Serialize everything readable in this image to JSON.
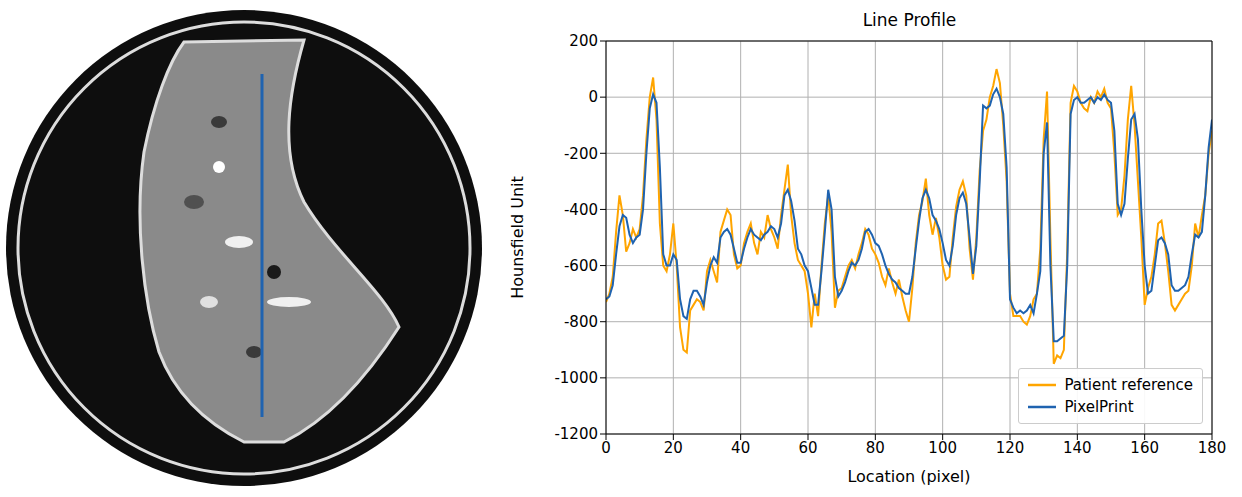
{
  "chart_data": {
    "type": "line",
    "title": "Line Profile",
    "x_label": "Location (pixel)",
    "y_label": "Hounsfield Unit",
    "xlim": [
      0,
      180
    ],
    "xticks": [
      0,
      20,
      40,
      60,
      80,
      100,
      120,
      140,
      160,
      180
    ],
    "ylim": [
      -1200,
      200
    ],
    "yticks": [
      -1200,
      -1000,
      -800,
      -600,
      -400,
      -200,
      0,
      200
    ],
    "grid": true,
    "legend": "lower right",
    "x": [
      0,
      1,
      2,
      3,
      4,
      5,
      6,
      7,
      8,
      9,
      10,
      11,
      12,
      13,
      14,
      15,
      16,
      17,
      18,
      19,
      20,
      21,
      22,
      23,
      24,
      25,
      26,
      27,
      28,
      29,
      30,
      31,
      32,
      33,
      34,
      35,
      36,
      37,
      38,
      39,
      40,
      41,
      42,
      43,
      44,
      45,
      46,
      47,
      48,
      49,
      50,
      51,
      52,
      53,
      54,
      55,
      56,
      57,
      58,
      59,
      60,
      61,
      62,
      63,
      64,
      65,
      66,
      67,
      68,
      69,
      70,
      71,
      72,
      73,
      74,
      75,
      76,
      77,
      78,
      79,
      80,
      81,
      82,
      83,
      84,
      85,
      86,
      87,
      88,
      89,
      90,
      91,
      92,
      93,
      94,
      95,
      96,
      97,
      98,
      99,
      100,
      101,
      102,
      103,
      104,
      105,
      106,
      107,
      108,
      109,
      110,
      111,
      112,
      113,
      114,
      115,
      116,
      117,
      118,
      119,
      120,
      121,
      122,
      123,
      124,
      125,
      126,
      127,
      128,
      129,
      130,
      131,
      132,
      133,
      134,
      135,
      136,
      137,
      138,
      139,
      140,
      141,
      142,
      143,
      144,
      145,
      146,
      147,
      148,
      149,
      150,
      151,
      152,
      153,
      154,
      155,
      156,
      157,
      158,
      159,
      160,
      161,
      162,
      163,
      164,
      165,
      166,
      167,
      168,
      169,
      170,
      171,
      172,
      173,
      174,
      175,
      176,
      177,
      178,
      179,
      180
    ],
    "series": [
      {
        "name": "Patient reference",
        "color": "#ffa500",
        "values": [
          -730,
          -700,
          -640,
          -480,
          -350,
          -420,
          -550,
          -520,
          -470,
          -500,
          -470,
          -350,
          -150,
          0,
          70,
          -80,
          -450,
          -600,
          -620,
          -560,
          -450,
          -600,
          -820,
          -900,
          -910,
          -760,
          -740,
          -720,
          -730,
          -760,
          -620,
          -580,
          -620,
          -660,
          -480,
          -440,
          -400,
          -420,
          -560,
          -610,
          -600,
          -520,
          -480,
          -450,
          -520,
          -560,
          -480,
          -500,
          -420,
          -470,
          -500,
          -540,
          -420,
          -330,
          -240,
          -420,
          -520,
          -580,
          -600,
          -620,
          -700,
          -820,
          -700,
          -780,
          -600,
          -450,
          -350,
          -480,
          -750,
          -690,
          -680,
          -640,
          -600,
          -580,
          -610,
          -560,
          -520,
          -470,
          -490,
          -540,
          -560,
          -590,
          -640,
          -670,
          -610,
          -660,
          -700,
          -650,
          -710,
          -760,
          -800,
          -680,
          -520,
          -420,
          -370,
          -290,
          -420,
          -490,
          -430,
          -500,
          -600,
          -650,
          -640,
          -500,
          -390,
          -330,
          -300,
          -350,
          -540,
          -650,
          -500,
          -260,
          -120,
          -80,
          0,
          40,
          100,
          50,
          -100,
          -300,
          -700,
          -780,
          -780,
          -780,
          -800,
          -810,
          -780,
          -720,
          -700,
          -540,
          -150,
          20,
          -500,
          -950,
          -920,
          -930,
          -900,
          -550,
          -20,
          40,
          20,
          -20,
          -40,
          -50,
          0,
          -20,
          20,
          0,
          30,
          -20,
          -40,
          -200,
          -420,
          -400,
          -280,
          -80,
          40,
          -100,
          -300,
          -500,
          -740,
          -680,
          -640,
          -560,
          -450,
          -440,
          -520,
          -620,
          -740,
          -760,
          -740,
          -720,
          -700,
          -690,
          -600,
          -450,
          -500,
          -420,
          -350,
          -200,
          -120
        ]
      },
      {
        "name": "PixelPrint",
        "color": "#1f63b0",
        "values": [
          -720,
          -710,
          -670,
          -560,
          -460,
          -420,
          -430,
          -490,
          -520,
          -500,
          -490,
          -400,
          -200,
          -40,
          10,
          -20,
          -250,
          -560,
          -600,
          -600,
          -560,
          -580,
          -720,
          -780,
          -790,
          -720,
          -690,
          -690,
          -710,
          -740,
          -660,
          -600,
          -570,
          -590,
          -500,
          -480,
          -470,
          -490,
          -540,
          -590,
          -590,
          -540,
          -500,
          -470,
          -490,
          -500,
          -510,
          -490,
          -480,
          -460,
          -470,
          -500,
          -450,
          -350,
          -330,
          -370,
          -440,
          -540,
          -560,
          -600,
          -620,
          -680,
          -740,
          -740,
          -620,
          -480,
          -330,
          -400,
          -640,
          -710,
          -690,
          -660,
          -620,
          -590,
          -600,
          -580,
          -540,
          -480,
          -470,
          -490,
          -520,
          -530,
          -560,
          -600,
          -630,
          -650,
          -660,
          -680,
          -690,
          -700,
          -700,
          -640,
          -540,
          -440,
          -360,
          -330,
          -360,
          -420,
          -440,
          -470,
          -520,
          -580,
          -600,
          -530,
          -420,
          -360,
          -340,
          -380,
          -500,
          -630,
          -530,
          -300,
          -30,
          -40,
          -30,
          10,
          30,
          0,
          -60,
          -250,
          -720,
          -750,
          -770,
          -760,
          -770,
          -760,
          -740,
          -770,
          -700,
          -620,
          -200,
          -90,
          -600,
          -870,
          -870,
          -860,
          -850,
          -600,
          -60,
          -10,
          0,
          -20,
          -20,
          -10,
          0,
          -20,
          0,
          -10,
          10,
          -10,
          -20,
          -120,
          -380,
          -420,
          -380,
          -220,
          -80,
          -60,
          -150,
          -400,
          -600,
          -700,
          -690,
          -600,
          -510,
          -500,
          -520,
          -560,
          -670,
          -690,
          -690,
          -680,
          -670,
          -640,
          -560,
          -490,
          -500,
          -480,
          -350,
          -180,
          -80
        ]
      }
    ]
  }
}
